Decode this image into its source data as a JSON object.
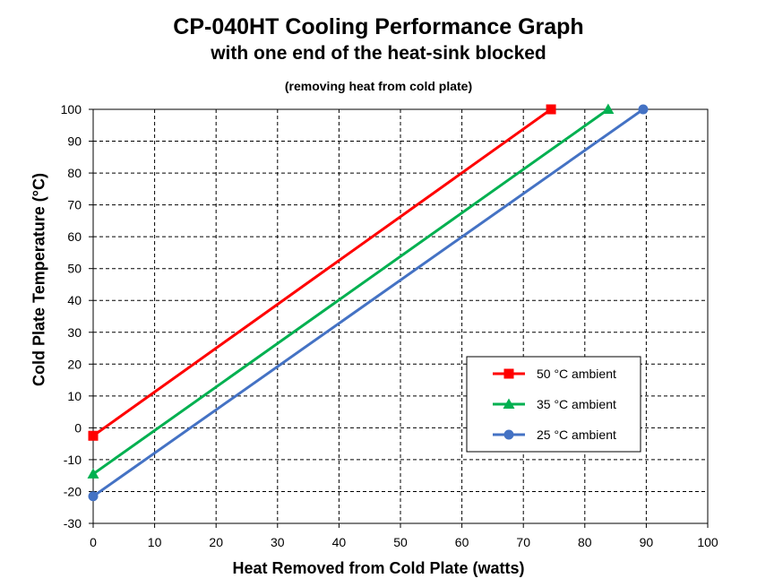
{
  "chart_data": {
    "type": "line",
    "title": "CP-040HT Cooling Performance Graph",
    "subtitle": "with one end of the heat-sink blocked",
    "note": "(removing heat from cold plate)",
    "xlabel": "Heat Removed from Cold Plate (watts)",
    "ylabel": "Cold Plate Temperature (°C)",
    "xlim": [
      0,
      100
    ],
    "ylim": [
      -30,
      100
    ],
    "xticks": [
      "0",
      "10",
      "20",
      "30",
      "40",
      "50",
      "60",
      "70",
      "80",
      "90",
      "100"
    ],
    "yticks": [
      "100",
      "90",
      "80",
      "70",
      "60",
      "50",
      "40",
      "30",
      "20",
      "10",
      "0",
      "-10",
      "-20",
      "-30"
    ],
    "grid": true,
    "legend_position": "lower-right",
    "series": [
      {
        "name": "50 °C ambient",
        "color": "#ff0000",
        "marker": "square",
        "x": [
          0,
          74.5
        ],
        "y": [
          -2.5,
          100
        ]
      },
      {
        "name": "35 °C ambient",
        "color": "#00b050",
        "marker": "triangle",
        "x": [
          0,
          83.8
        ],
        "y": [
          -14.5,
          100
        ]
      },
      {
        "name": "25 °C ambient",
        "color": "#4472c4",
        "marker": "circle",
        "x": [
          0,
          89.5
        ],
        "y": [
          -21.5,
          100
        ]
      }
    ]
  }
}
